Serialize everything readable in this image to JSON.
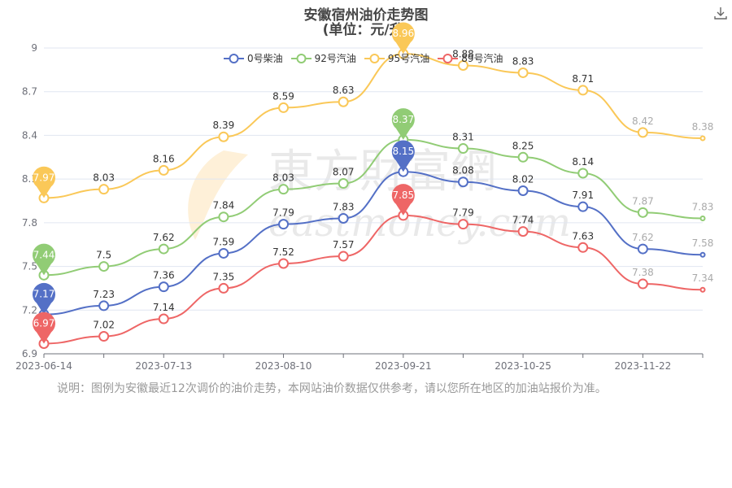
{
  "title": "安徽宿州油价走势图",
  "subtitle": "(单位：元/升)",
  "note": "说明：图例为安徽最近12次调价的油价走势，本网站油价数据仅供参考，请以您所在地区的加油站报价为准。",
  "download_icon": "download-icon",
  "watermark": {
    "cn": "東方財富網",
    "en": "eastmoney.com"
  },
  "chart_data": {
    "type": "line",
    "x_tick_labels": [
      "2023-06-14",
      "2023-07-13",
      "2023-08-10",
      "2023-09-21",
      "2023-10-25",
      "2023-11-22"
    ],
    "y_ticks": [
      6.9,
      7.2,
      7.5,
      7.8,
      8.1,
      8.4,
      8.7,
      9
    ],
    "y_tick_labels": [
      "6.9",
      "7.2",
      "7.5",
      "7.8",
      "8.1",
      "8.4",
      "8.7",
      "9"
    ],
    "ylim": [
      6.9,
      9.0
    ],
    "grid": true,
    "legend_position": "top",
    "points_count": 12,
    "series": [
      {
        "name": "0号柴油",
        "color": "#5470c6",
        "values": [
          7.17,
          7.23,
          7.36,
          7.59,
          7.79,
          7.83,
          8.15,
          8.08,
          8.02,
          7.91,
          7.62,
          7.58
        ],
        "labels": [
          "7.17",
          "7.23",
          "7.36",
          "7.59",
          "7.79",
          "7.83",
          "8.15",
          "8.08",
          "8.02",
          "7.91",
          "7.62",
          "7.58"
        ],
        "max_index": 6,
        "min_index": 0
      },
      {
        "name": "92号汽油",
        "color": "#91cc75",
        "values": [
          7.44,
          7.5,
          7.62,
          7.84,
          8.03,
          8.07,
          8.37,
          8.31,
          8.25,
          8.14,
          7.87,
          7.83
        ],
        "labels": [
          "7.44",
          "7.5",
          "7.62",
          "7.84",
          "8.03",
          "8.07",
          "8.37",
          "8.31",
          "8.25",
          "8.14",
          "7.87",
          "7.83"
        ],
        "max_index": 6,
        "min_index": 0
      },
      {
        "name": "95号汽油",
        "color": "#fac858",
        "values": [
          7.97,
          8.03,
          8.16,
          8.39,
          8.59,
          8.63,
          8.96,
          8.88,
          8.83,
          8.71,
          8.42,
          8.38
        ],
        "labels": [
          "7.97",
          "8.03",
          "8.16",
          "8.39",
          "8.59",
          "8.63",
          "8.96",
          "8.88",
          "8.83",
          "8.71",
          "8.42",
          "8.38"
        ],
        "max_index": 6,
        "min_index": 0
      },
      {
        "name": "89号汽油",
        "color": "#ee6666",
        "values": [
          6.97,
          7.02,
          7.14,
          7.35,
          7.52,
          7.57,
          7.85,
          7.79,
          7.74,
          7.63,
          7.38,
          7.34
        ],
        "labels": [
          "6.97",
          "7.02",
          "7.14",
          "7.35",
          "7.52",
          "7.57",
          "7.85",
          "7.79",
          "7.74",
          "7.63",
          "7.38",
          "7.34"
        ],
        "max_index": 6,
        "min_index": 0
      }
    ]
  }
}
